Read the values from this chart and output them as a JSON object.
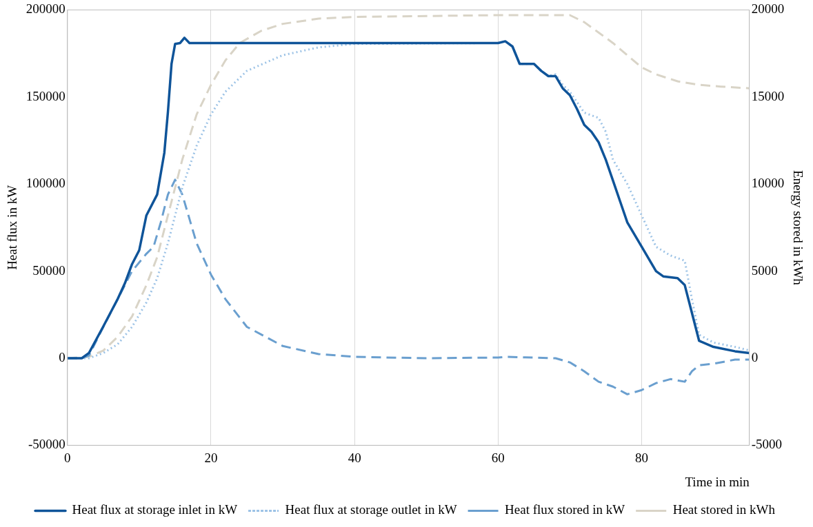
{
  "chart_data": {
    "type": "line",
    "xlabel": "Time in min",
    "ylabel": "Heat flux in kW",
    "y2label": "Energy stored in kWh",
    "xlim": [
      0,
      95
    ],
    "xticks": [
      0,
      20,
      40,
      60,
      80
    ],
    "ylim": [
      -50000,
      200000
    ],
    "yticks": [
      -50000,
      0,
      50000,
      100000,
      150000,
      200000
    ],
    "y2lim": [
      -5000,
      20000
    ],
    "y2ticks": [
      -5000,
      0,
      5000,
      10000,
      15000,
      20000
    ],
    "grid": "x",
    "legend": "bottom",
    "marker": "none",
    "series": [
      {
        "name": "Heat flux at storage inlet in kW",
        "color": "#0f5499",
        "line_style": "solid",
        "x": [
          0,
          2,
          3,
          5,
          7,
          8,
          9,
          10,
          11,
          12.5,
          13.5,
          14,
          14.5,
          15,
          15.7,
          16.3,
          17,
          60,
          61,
          62,
          63,
          65,
          66,
          67,
          68,
          69,
          70,
          71,
          72,
          73,
          74,
          75,
          76,
          77,
          78,
          80,
          82,
          83,
          85,
          86,
          87,
          88,
          90,
          93,
          95
        ],
        "values": [
          0,
          0,
          3000,
          18300,
          34000,
          43000,
          54000,
          62000,
          82000,
          94000,
          118000,
          141500,
          169000,
          180500,
          181000,
          184000,
          181000,
          181000,
          182000,
          179000,
          169000,
          169000,
          165000,
          162000,
          162000,
          155000,
          151000,
          143000,
          134000,
          130000,
          124000,
          114000,
          102000,
          90000,
          78000,
          64000,
          50000,
          47000,
          46000,
          42000,
          26000,
          10000,
          6500,
          4000,
          3000
        ]
      },
      {
        "name": "Heat flux at storage outlet in kW",
        "color": "#9dc3e6",
        "line_style": "dotted",
        "x": [
          0,
          3,
          5,
          7,
          9,
          11,
          12.5,
          14,
          15,
          16,
          18,
          20,
          22,
          25,
          30,
          35,
          40,
          60,
          61,
          62,
          63,
          65,
          66,
          67,
          68,
          69,
          70,
          72,
          74,
          75,
          76,
          78,
          80,
          82,
          84,
          86,
          87,
          88,
          90,
          93,
          95
        ],
        "values": [
          0,
          0,
          3000,
          8000,
          18000,
          32000,
          46000,
          66000,
          82000,
          98000,
          122000,
          140000,
          153000,
          165000,
          174000,
          178500,
          180500,
          181000,
          182000,
          179000,
          169000,
          169000,
          165000,
          162000,
          163000,
          157000,
          153000,
          141000,
          138000,
          130000,
          114000,
          100000,
          82000,
          64000,
          59000,
          56000,
          34000,
          13500,
          9000,
          6500,
          4500
        ]
      },
      {
        "name": "Heat flux stored in kW",
        "color": "#6a9fcf",
        "line_style": "dashed",
        "x": [
          0,
          2,
          3,
          5,
          7,
          9,
          11,
          12,
          13,
          14,
          15,
          16,
          18,
          20,
          22,
          25,
          30,
          35,
          40,
          50,
          60,
          61,
          68,
          70,
          72,
          74,
          76,
          78,
          80,
          82,
          84,
          86,
          87,
          88,
          90,
          93,
          95
        ],
        "values": [
          0,
          0,
          1500,
          18000,
          34000,
          50000,
          60000,
          64000,
          78000,
          94000,
          102500,
          94000,
          66000,
          48000,
          34000,
          18000,
          7000,
          2400,
          800,
          0,
          400,
          800,
          0,
          -2400,
          -7500,
          -13500,
          -16300,
          -20700,
          -18300,
          -14300,
          -12000,
          -13500,
          -7500,
          -4000,
          -3200,
          -800,
          -800
        ]
      },
      {
        "name": "Heat stored in kWh",
        "color": "#d9d4c7",
        "line_style": "dashed",
        "axis": "y2",
        "x": [
          0,
          3,
          5,
          7,
          9,
          11,
          12.5,
          14,
          15,
          16,
          18,
          20,
          22,
          24,
          27,
          30,
          35,
          40,
          60,
          70,
          72,
          74,
          76,
          78,
          80,
          82,
          85,
          88,
          91,
          95
        ],
        "values": [
          0,
          80,
          440,
          1230,
          2400,
          4200,
          5800,
          8200,
          9800,
          11400,
          14000,
          15700,
          17100,
          18100,
          18800,
          19200,
          19500,
          19600,
          19700,
          19700,
          19300,
          18700,
          18100,
          17400,
          16700,
          16300,
          15900,
          15700,
          15600,
          15500
        ]
      }
    ]
  }
}
